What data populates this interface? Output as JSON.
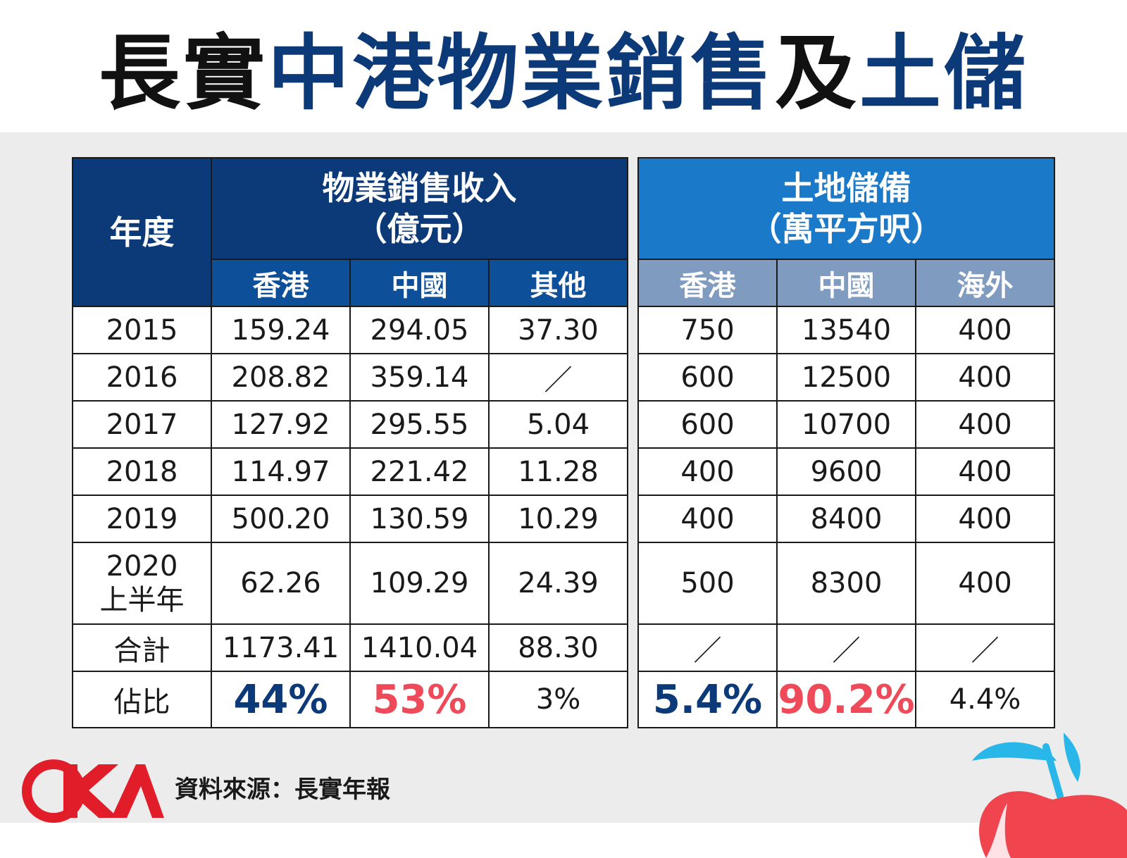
{
  "title": {
    "part1": "長實",
    "part2": "中港物業銷售",
    "part3": "及",
    "part4": "土儲"
  },
  "colors": {
    "navy": "#0c3a78",
    "blue": "#1a79c8",
    "red": "#ee4a5a",
    "grey_blue": "#7f9bbf"
  },
  "chart_data": {
    "type": "table",
    "header": {
      "year": "年度",
      "sales_group_line1": "物業銷售收入",
      "sales_group_line2": "（億元）",
      "land_group_line1": "土地儲備",
      "land_group_line2": "（萬平方呎）",
      "sales_cols": [
        "香港",
        "中國",
        "其他"
      ],
      "land_cols": [
        "香港",
        "中國",
        "海外"
      ]
    },
    "rows": [
      {
        "year": "2015",
        "sales": [
          "159.24",
          "294.05",
          "37.30"
        ],
        "land": [
          "750",
          "13540",
          "400"
        ]
      },
      {
        "year": "2016",
        "sales": [
          "208.82",
          "359.14",
          "／"
        ],
        "land": [
          "600",
          "12500",
          "400"
        ]
      },
      {
        "year": "2017",
        "sales": [
          "127.92",
          "295.55",
          "5.04"
        ],
        "land": [
          "600",
          "10700",
          "400"
        ]
      },
      {
        "year": "2018",
        "sales": [
          "114.97",
          "221.42",
          "11.28"
        ],
        "land": [
          "400",
          "9600",
          "400"
        ]
      },
      {
        "year": "2019",
        "sales": [
          "500.20",
          "130.59",
          "10.29"
        ],
        "land": [
          "400",
          "8400",
          "400"
        ]
      },
      {
        "year": "2020",
        "year_line2": "上半年",
        "sales": [
          "62.26",
          "109.29",
          "24.39"
        ],
        "land": [
          "500",
          "8300",
          "400"
        ]
      }
    ],
    "total": {
      "label": "合計",
      "sales": [
        "1173.41",
        "1410.04",
        "88.30"
      ],
      "land": [
        "／",
        "／",
        "／"
      ]
    },
    "share": {
      "label": "佔比",
      "sales": [
        "44%",
        "53%",
        "3%"
      ],
      "land": [
        "5.4%",
        "90.2%",
        "4.4%"
      ]
    }
  },
  "source": "資料來源：長實年報"
}
